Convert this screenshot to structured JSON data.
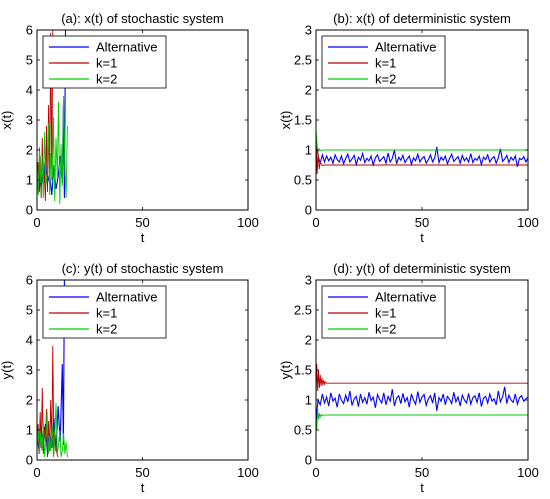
{
  "colors": {
    "series": [
      "#0000ff",
      "#bf0000",
      "#00cc00"
    ]
  },
  "chart_data": [
    {
      "type": "line",
      "title": "(a): x(t) of stochastic system",
      "xlabel": "t",
      "ylabel": "x(t)",
      "xlim": [
        0,
        100
      ],
      "ylim": [
        0,
        6
      ],
      "xticks": [
        0,
        50,
        100
      ],
      "yticks": [
        0,
        1,
        2,
        3,
        4,
        5,
        6
      ],
      "grid": false,
      "legend_position": "top-left",
      "series": [
        {
          "name": "Alternative",
          "x": [
            0,
            1,
            2,
            3,
            4,
            5,
            6,
            7,
            8,
            9,
            10,
            11,
            12,
            12.5,
            13,
            13.5,
            14
          ],
          "y": [
            1.0,
            0.6,
            1.3,
            0.8,
            1.6,
            0.9,
            1.2,
            0.5,
            1.5,
            0.7,
            1.1,
            1.8,
            0.9,
            3.5,
            0.4,
            6.0,
            6.0
          ]
        },
        {
          "name": "k=1",
          "x": [
            0,
            0.5,
            1,
            1.5,
            2,
            2.5,
            3,
            3.5,
            4,
            4.5,
            5,
            5.5,
            6,
            6.5,
            7,
            7.5,
            8,
            8.5,
            9
          ],
          "y": [
            0.9,
            1.6,
            0.6,
            1.8,
            0.4,
            2.4,
            0.8,
            1.2,
            0.3,
            2.8,
            0.6,
            3.5,
            0.9,
            5.9,
            1.0,
            6.0,
            6.0,
            6.0,
            6.0
          ]
        },
        {
          "name": "k=2",
          "x": [
            0,
            0.6,
            1.2,
            1.8,
            2.4,
            3,
            3.6,
            4.2,
            4.8,
            5.4,
            6,
            6.6,
            7.2,
            7.8,
            8.4,
            9,
            9.6,
            10.2,
            10.8,
            11.4,
            12,
            12.6,
            13.2,
            13.8,
            14.4
          ],
          "y": [
            1.5,
            0.5,
            2.1,
            0.9,
            1.8,
            0.4,
            2.6,
            0.8,
            1.2,
            2.9,
            0.5,
            1.9,
            1.0,
            3.1,
            0.3,
            2.4,
            1.1,
            3.6,
            0.2,
            2.2,
            0.8,
            3.8,
            1.5,
            0.4,
            2.8
          ]
        }
      ]
    },
    {
      "type": "line",
      "title": "(b): x(t) of deterministic system",
      "xlabel": "t",
      "ylabel": "x(t)",
      "xlim": [
        0,
        100
      ],
      "ylim": [
        0,
        3
      ],
      "xticks": [
        0,
        50,
        100
      ],
      "yticks": [
        0,
        0.5,
        1,
        1.5,
        2,
        2.5,
        3
      ],
      "grid": false,
      "legend_position": "top-left",
      "series": [
        {
          "name": "Alternative",
          "x": [
            0,
            0.5,
            1,
            2,
            3,
            4,
            5,
            6,
            7,
            8,
            9,
            10,
            11,
            12,
            13,
            14,
            15,
            16,
            17,
            18,
            19,
            20,
            21,
            22,
            23,
            24,
            25,
            26,
            27,
            28,
            29,
            30,
            31,
            32,
            33,
            34,
            35,
            36,
            37,
            38,
            39,
            40,
            41,
            42,
            43,
            44,
            45,
            46,
            47,
            48,
            49,
            50,
            51,
            52,
            53,
            54,
            55,
            56,
            57,
            58,
            59,
            60,
            61,
            62,
            63,
            64,
            65,
            66,
            67,
            68,
            69,
            70,
            71,
            72,
            73,
            74,
            75,
            76,
            77,
            78,
            79,
            80,
            81,
            82,
            83,
            84,
            85,
            86,
            87,
            88,
            89,
            90,
            91,
            92,
            93,
            94,
            95,
            96,
            97,
            98,
            99,
            100
          ],
          "y": [
            1.2,
            1.05,
            0.9,
            0.78,
            0.92,
            0.8,
            0.9,
            0.82,
            0.88,
            0.78,
            0.92,
            0.84,
            0.8,
            0.9,
            0.77,
            0.86,
            0.93,
            0.8,
            0.85,
            0.91,
            0.76,
            0.88,
            0.83,
            0.94,
            0.79,
            0.86,
            0.82,
            0.9,
            0.75,
            0.87,
            0.92,
            0.81,
            0.85,
            0.89,
            0.78,
            0.95,
            0.8,
            0.86,
            1.0,
            0.77,
            0.88,
            0.83,
            0.91,
            0.79,
            0.85,
            0.9,
            0.76,
            0.87,
            0.82,
            0.93,
            0.8,
            0.86,
            0.89,
            0.78,
            0.84,
            0.92,
            0.8,
            0.87,
            1.05,
            0.79,
            0.88,
            0.83,
            0.9,
            0.77,
            0.86,
            0.93,
            0.81,
            0.85,
            0.89,
            0.78,
            0.91,
            0.82,
            0.87,
            0.8,
            0.94,
            0.79,
            0.86,
            0.83,
            0.9,
            0.76,
            0.88,
            0.84,
            0.92,
            0.8,
            0.86,
            0.89,
            0.78,
            0.87,
            1.02,
            0.81,
            0.85,
            0.91,
            0.79,
            0.88,
            0.83,
            0.9,
            0.72,
            0.86,
            0.84,
            0.89,
            0.8,
            0.87
          ]
        },
        {
          "name": "k=1",
          "x": [
            0,
            0.5,
            1,
            1.5,
            2,
            3,
            4,
            100
          ],
          "y": [
            1.3,
            0.6,
            0.95,
            0.68,
            0.8,
            0.74,
            0.75,
            0.75
          ]
        },
        {
          "name": "k=2",
          "x": [
            0,
            0.5,
            1,
            1.5,
            2,
            3,
            100
          ],
          "y": [
            1.35,
            1.05,
            0.97,
            1.02,
            0.99,
            1.0,
            1.0
          ]
        }
      ]
    },
    {
      "type": "line",
      "title": "(c): y(t) of stochastic system",
      "xlabel": "t",
      "ylabel": "y(t)",
      "xlim": [
        0,
        100
      ],
      "ylim": [
        0,
        6
      ],
      "xticks": [
        0,
        50,
        100
      ],
      "yticks": [
        0,
        1,
        2,
        3,
        4,
        5,
        6
      ],
      "grid": false,
      "legend_position": "top-left",
      "series": [
        {
          "name": "Alternative",
          "x": [
            0,
            1,
            2,
            3,
            4,
            5,
            6,
            7,
            8,
            9,
            10,
            11,
            12,
            12.5,
            13,
            13.5,
            14
          ],
          "y": [
            0.8,
            0.3,
            1.0,
            0.5,
            1.2,
            0.2,
            0.9,
            0.4,
            1.4,
            0.3,
            1.8,
            0.6,
            3.2,
            0.5,
            6.0,
            6.0,
            6.0
          ]
        },
        {
          "name": "k=1",
          "x": [
            0,
            0.5,
            1,
            1.5,
            2,
            2.5,
            3,
            3.5,
            4,
            4.5,
            5,
            5.5,
            6,
            6.5,
            7,
            7.5,
            8,
            8.5,
            9,
            9.5,
            10
          ],
          "y": [
            0.5,
            1.2,
            0.2,
            1.6,
            0.4,
            2.4,
            0.2,
            1.1,
            0.6,
            1.7,
            0.1,
            1.3,
            0.3,
            2.0,
            0.5,
            3.8,
            0.2,
            1.0,
            0.4,
            0.2,
            0.1
          ]
        },
        {
          "name": "k=2",
          "x": [
            0,
            0.6,
            1.2,
            1.8,
            2.4,
            3,
            3.6,
            4.2,
            4.8,
            5.4,
            6,
            6.6,
            7.2,
            7.8,
            8.4,
            9,
            9.6,
            10.2,
            10.8,
            11.4,
            12,
            12.6,
            13.2,
            13.8,
            14.4
          ],
          "y": [
            0.4,
            1.0,
            0.2,
            0.9,
            0.3,
            1.3,
            0.1,
            0.7,
            1.6,
            0.2,
            0.8,
            0.3,
            1.2,
            0.1,
            0.6,
            1.9,
            0.2,
            0.5,
            1.0,
            0.1,
            0.3,
            0.9,
            0.2,
            0.6,
            0.1
          ]
        }
      ]
    },
    {
      "type": "line",
      "title": "(d): y(t) of deterministic system",
      "xlabel": "t",
      "ylabel": "y(t)",
      "xlim": [
        0,
        100
      ],
      "ylim": [
        0,
        3
      ],
      "xticks": [
        0,
        50,
        100
      ],
      "yticks": [
        0,
        0.5,
        1,
        1.5,
        2,
        2.5,
        3
      ],
      "grid": false,
      "legend_position": "top-left",
      "series": [
        {
          "name": "Alternative",
          "x": [
            0,
            0.5,
            1,
            2,
            3,
            4,
            5,
            6,
            7,
            8,
            9,
            10,
            11,
            12,
            13,
            14,
            15,
            16,
            17,
            18,
            19,
            20,
            21,
            22,
            23,
            24,
            25,
            26,
            27,
            28,
            29,
            30,
            31,
            32,
            33,
            34,
            35,
            36,
            37,
            38,
            39,
            40,
            41,
            42,
            43,
            44,
            45,
            46,
            47,
            48,
            49,
            50,
            51,
            52,
            53,
            54,
            55,
            56,
            57,
            58,
            59,
            60,
            61,
            62,
            63,
            64,
            65,
            66,
            67,
            68,
            69,
            70,
            71,
            72,
            73,
            74,
            75,
            76,
            77,
            78,
            79,
            80,
            81,
            82,
            83,
            84,
            85,
            86,
            87,
            88,
            89,
            90,
            91,
            92,
            93,
            94,
            95,
            96,
            97,
            98,
            99,
            100
          ],
          "y": [
            0.6,
            0.85,
            1.0,
            0.92,
            1.1,
            0.95,
            1.05,
            0.9,
            1.12,
            0.98,
            1.03,
            0.88,
            1.1,
            1.0,
            0.94,
            1.08,
            0.97,
            1.15,
            0.91,
            1.02,
            1.06,
            0.89,
            1.1,
            0.96,
            1.04,
            0.93,
            1.13,
            0.99,
            1.05,
            0.87,
            1.09,
            1.01,
            0.95,
            1.12,
            0.92,
            1.06,
            0.98,
            1.18,
            0.9,
            1.03,
            1.07,
            0.94,
            1.11,
            0.97,
            1.04,
            0.88,
            1.1,
            1.0,
            0.93,
            1.14,
            0.96,
            1.05,
            1.09,
            0.91,
            1.02,
            1.07,
            0.95,
            1.12,
            0.82,
            1.04,
            0.98,
            1.1,
            0.92,
            1.06,
            1.01,
            0.94,
            1.13,
            0.97,
            1.05,
            0.9,
            1.08,
            1.0,
            0.95,
            1.11,
            0.93,
            1.04,
            1.07,
            0.96,
            1.12,
            0.89,
            1.03,
            1.06,
            0.95,
            1.1,
            0.98,
            1.02,
            0.92,
            1.15,
            0.97,
            1.05,
            1.22,
            0.94,
            1.08,
            1.0,
            0.96,
            1.1,
            0.93,
            1.04,
            1.07,
            0.98,
            1.02,
            1.05
          ]
        },
        {
          "name": "k=1",
          "x": [
            0,
            0.4,
            0.8,
            1.2,
            1.6,
            2.0,
            2.4,
            2.8,
            3.2,
            3.6,
            4.0,
            4.5,
            5,
            6,
            100
          ],
          "y": [
            1.0,
            1.6,
            1.15,
            1.5,
            1.2,
            1.42,
            1.23,
            1.37,
            1.25,
            1.33,
            1.26,
            1.3,
            1.28,
            1.28,
            1.28
          ]
        },
        {
          "name": "k=2",
          "x": [
            0,
            0.4,
            0.8,
            1.2,
            1.6,
            2.0,
            2.5,
            3,
            4,
            100
          ],
          "y": [
            0.7,
            0.5,
            0.85,
            0.68,
            0.78,
            0.72,
            0.76,
            0.74,
            0.75,
            0.75
          ]
        }
      ]
    }
  ]
}
